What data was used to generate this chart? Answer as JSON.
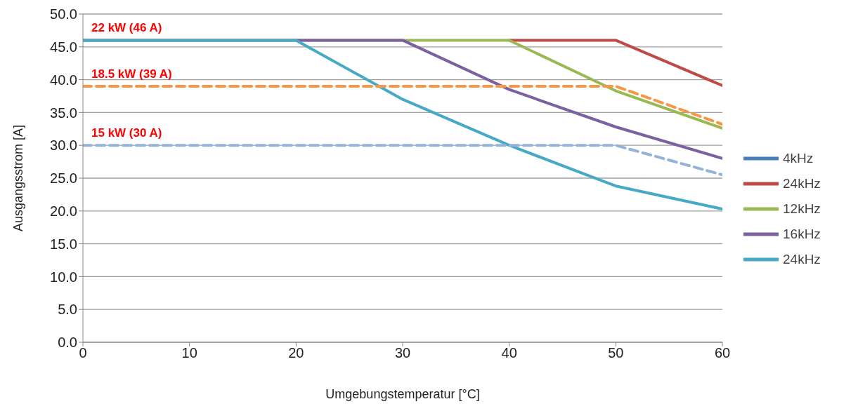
{
  "chart_data": {
    "type": "line",
    "xlabel": "Umgebungstemperatur [°C]",
    "ylabel": "Ausgangsstrom [A]",
    "x": [
      0,
      10,
      20,
      30,
      40,
      50,
      60
    ],
    "xlim": [
      0,
      60
    ],
    "xticks": [
      0,
      10,
      20,
      30,
      40,
      50,
      60
    ],
    "ylim": [
      0,
      50
    ],
    "yticks": [
      {
        "value": 0,
        "label": "0.0"
      },
      {
        "value": 5,
        "label": "5.0"
      },
      {
        "value": 10,
        "label": "10.0"
      },
      {
        "value": 15,
        "label": "15.0"
      },
      {
        "value": 20,
        "label": "20.0"
      },
      {
        "value": 25,
        "label": "25.0"
      },
      {
        "value": 30,
        "label": "30.0"
      },
      {
        "value": 35,
        "label": "35.0"
      },
      {
        "value": 40,
        "label": "40.0"
      },
      {
        "value": 45,
        "label": "45.0"
      },
      {
        "value": 50,
        "label": "50.0"
      }
    ],
    "grid": "y",
    "legend": "right",
    "marker": "none",
    "series": [
      {
        "name": "4kHz",
        "color": "#4a7ebb",
        "values": [
          null,
          null,
          null,
          null,
          null,
          null,
          null
        ]
      },
      {
        "name": "24kHz",
        "color": "#be4b48",
        "values": [
          null,
          null,
          null,
          null,
          46,
          46,
          39.1
        ]
      },
      {
        "name": "12kHz",
        "color": "#98b954",
        "values": [
          null,
          null,
          46,
          46,
          46,
          38.3,
          32.6
        ]
      },
      {
        "name": "16kHz",
        "color": "#7d60a0",
        "values": [
          46,
          46,
          46,
          46,
          38.5,
          32.8,
          28
        ]
      },
      {
        "name": "24kHz",
        "color": "#46aac5",
        "values": [
          46,
          46,
          46,
          37,
          30,
          23.8,
          20.3
        ]
      },
      {
        "color": "#f79646",
        "line_style": "dashed",
        "values": [
          39,
          39,
          39,
          39,
          39,
          39,
          33.2
        ]
      },
      {
        "color": "#95b3d7",
        "line_style": "dashed",
        "values": [
          30,
          30,
          30,
          30,
          30,
          30,
          25.5
        ]
      }
    ],
    "annotations": [
      {
        "text": "22 kW (46 A)",
        "y": 46
      },
      {
        "text": "18.5 kW (39 A)",
        "y": 39
      },
      {
        "text": "15 kW (30 A)",
        "y": 30
      }
    ]
  }
}
